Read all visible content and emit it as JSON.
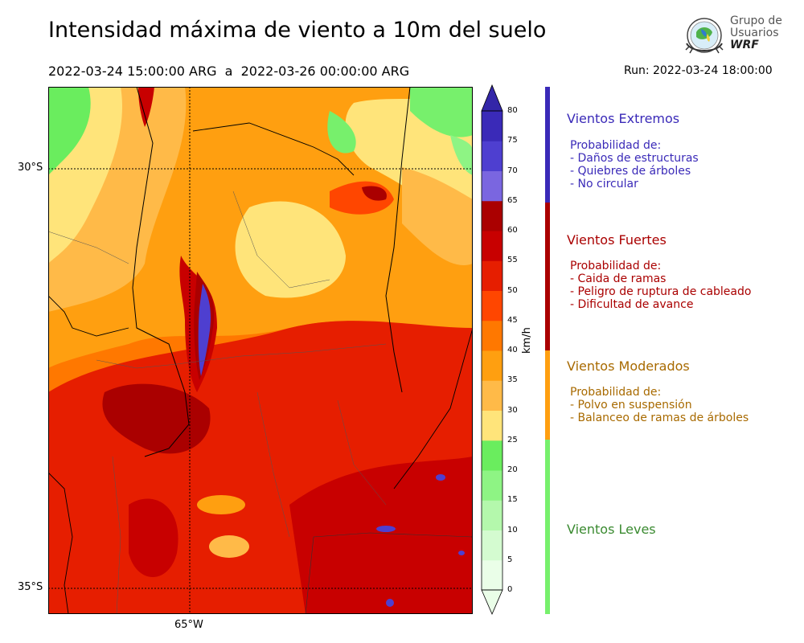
{
  "header": {
    "title": "Intensidad máxima de viento a 10m del suelo",
    "period": "2022-03-24 15:00:00 ARG  a  2022-03-26 00:00:00 ARG",
    "run": "Run: 2022-03-24 18:00:00"
  },
  "logo": {
    "line1": "Grupo de",
    "line2": "Usuarios",
    "line3": "WRF"
  },
  "map": {
    "lat_labels": [
      "30°S",
      "35°S"
    ],
    "lon_labels": [
      "65°W"
    ]
  },
  "colorbar": {
    "unit": "km/h",
    "ticks": [
      "0",
      "5",
      "10",
      "15",
      "20",
      "25",
      "30",
      "35",
      "40",
      "45",
      "50",
      "55",
      "60",
      "65",
      "70",
      "75",
      "80"
    ],
    "colors": [
      "#eafee8",
      "#d4fbd0",
      "#b4f8ac",
      "#8ef484",
      "#6aed5e",
      "#ffe47a",
      "#ffba48",
      "#ff9f10",
      "#ff7800",
      "#ff4600",
      "#e61e00",
      "#c80000",
      "#aa0000",
      "#7a66e0",
      "#4e3fd0",
      "#3a2ab8",
      "#3326a8"
    ]
  },
  "categories": [
    {
      "title": "Vientos Extremos",
      "color": "#3a2ab8",
      "prob_heading": "Probabilidad de:",
      "items": [
        "- Daños de estructuras",
        "- Quiebres de árboles",
        "- No circular"
      ]
    },
    {
      "title": "Vientos Fuertes",
      "color": "#aa0000",
      "prob_heading": "Probabilidad de:",
      "items": [
        "- Caida de ramas",
        "- Peligro de ruptura de cableado",
        "- Dificultad de avance"
      ]
    },
    {
      "title": "Vientos Moderados",
      "color": "#a86a00",
      "band_color": "#ff9f10",
      "prob_heading": "Probabilidad de:",
      "items": [
        "- Polvo en suspensión",
        "- Balanceo de ramas de árboles"
      ]
    },
    {
      "title": "Vientos Leves",
      "color": "#3a8a30",
      "band_color": "#77f06c"
    }
  ]
}
